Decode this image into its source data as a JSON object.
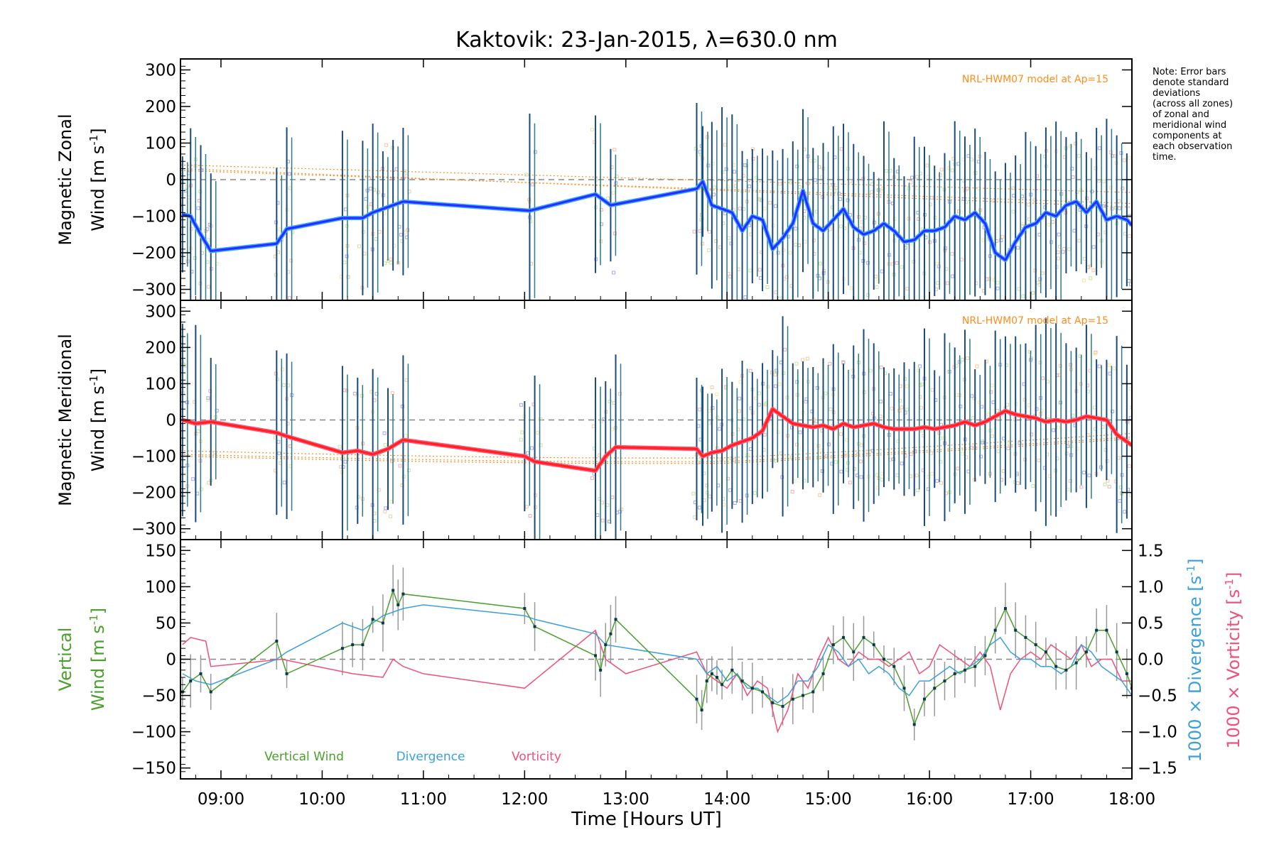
{
  "title": "Kaktovik: 23-Jan-2015, λ=630.0 nm",
  "note_lines": [
    "Note: Error bars",
    "denote standard",
    "deviations",
    "(across all zones)",
    "of zonal and",
    "meridional wind",
    "components at",
    "each observation",
    "time."
  ],
  "model_label": "NRL-HWM07 model at Ap=15",
  "colors": {
    "zonal": "#2b2bff",
    "zonal_light": "#33aaff",
    "meridional": "#ff2020",
    "meridional_light": "#ff5577",
    "vertical": "#4aa02c",
    "divergence": "#3aa0dd",
    "vorticity": "#f0507a",
    "model": "#ff8c1a",
    "errorbar": "#1a4a7a"
  },
  "chart_data": [
    {
      "type": "line",
      "panel": "zonal",
      "ylabel_1": "Magnetic Zonal",
      "ylabel_2": "Wind [m s",
      "ylabel_sup": "-1",
      "ylabel_end": "]",
      "xlim": [
        8.6,
        18.0
      ],
      "ylim": [
        -330,
        330
      ],
      "yticks": [
        -300,
        -200,
        -100,
        0,
        100,
        200,
        300
      ],
      "ytick_labels": [
        "−300",
        "−200",
        "−100",
        "0",
        "100",
        "200",
        "300"
      ],
      "series": [
        {
          "x": [
            8.62,
            8.7,
            8.8,
            8.9,
            9.55,
            9.65,
            10.2,
            10.4,
            10.5,
            10.6,
            10.7,
            10.8,
            12.05,
            12.7,
            12.85,
            13.7,
            13.76,
            13.85,
            13.95,
            14.05,
            14.15,
            14.25,
            14.35,
            14.45,
            14.55,
            14.65,
            14.75,
            14.85,
            14.95,
            15.05,
            15.15,
            15.25,
            15.35,
            15.45,
            15.55,
            15.65,
            15.75,
            15.85,
            15.95,
            16.05,
            16.15,
            16.25,
            16.35,
            16.45,
            16.55,
            16.65,
            16.75,
            16.85,
            16.95,
            17.05,
            17.15,
            17.25,
            17.35,
            17.45,
            17.55,
            17.65,
            17.75,
            17.85,
            17.95,
            18.0
          ],
          "y": [
            -95,
            -100,
            -150,
            -195,
            -175,
            -135,
            -105,
            -105,
            -90,
            -80,
            -70,
            -60,
            -85,
            -40,
            -70,
            -25,
            -5,
            -70,
            -80,
            -90,
            -140,
            -100,
            -110,
            -190,
            -160,
            -120,
            -30,
            -120,
            -140,
            -110,
            -80,
            -130,
            -150,
            -140,
            -120,
            -140,
            -170,
            -165,
            -140,
            -140,
            -130,
            -100,
            -110,
            -90,
            -120,
            -200,
            -220,
            -170,
            -130,
            -120,
            -90,
            -100,
            -70,
            -60,
            -90,
            -60,
            -110,
            -100,
            -110,
            -125
          ]
        }
      ]
    },
    {
      "type": "line",
      "panel": "meridional",
      "ylabel_1": "Magnetic Meridional",
      "ylabel_2": "Wind [m s",
      "ylabel_sup": "-1",
      "ylabel_end": "]",
      "xlim": [
        8.6,
        18.0
      ],
      "ylim": [
        -330,
        330
      ],
      "yticks": [
        -300,
        -200,
        -100,
        0,
        100,
        200,
        300
      ],
      "ytick_labels": [
        "−300",
        "−200",
        "−100",
        "0",
        "100",
        "200",
        "300"
      ],
      "series": [
        {
          "x": [
            8.62,
            8.75,
            8.9,
            9.55,
            9.65,
            10.2,
            10.35,
            10.5,
            10.65,
            10.8,
            12.0,
            12.1,
            12.7,
            12.8,
            12.9,
            13.7,
            13.76,
            13.85,
            13.95,
            14.05,
            14.15,
            14.25,
            14.35,
            14.45,
            14.55,
            14.65,
            14.75,
            14.85,
            14.95,
            15.05,
            15.15,
            15.25,
            15.35,
            15.45,
            15.55,
            15.65,
            15.75,
            15.85,
            15.95,
            16.05,
            16.15,
            16.25,
            16.35,
            16.45,
            16.55,
            16.65,
            16.75,
            16.85,
            16.95,
            17.05,
            17.15,
            17.25,
            17.35,
            17.45,
            17.55,
            17.65,
            17.75,
            17.85,
            17.95,
            18.0
          ],
          "y": [
            0,
            -10,
            -5,
            -35,
            -45,
            -90,
            -85,
            -95,
            -80,
            -55,
            -100,
            -115,
            -140,
            -100,
            -75,
            -80,
            -100,
            -90,
            -85,
            -70,
            -60,
            -50,
            -30,
            30,
            10,
            -10,
            -15,
            -20,
            -15,
            -25,
            -10,
            -20,
            -15,
            -10,
            -20,
            -25,
            -25,
            -25,
            -20,
            -25,
            -20,
            -15,
            -5,
            -15,
            -5,
            10,
            25,
            15,
            10,
            5,
            -5,
            0,
            -5,
            0,
            10,
            5,
            0,
            -40,
            -60,
            -70
          ]
        }
      ]
    },
    {
      "type": "line",
      "panel": "vertical",
      "ylabel_1": "Vertical",
      "ylabel_2": "Wind [m s",
      "ylabel_sup": "-1",
      "ylabel_end": "]",
      "ylabel_right_1": "1000 × Divergence [s",
      "ylabel_right_2": "1000 × Vorticity [s",
      "ylabel_right_sup": "-1",
      "ylabel_right_end": "]",
      "xlabel": "Time [Hours UT]",
      "xlim": [
        8.6,
        18.0
      ],
      "ylim": [
        -165,
        165
      ],
      "yticks": [
        -150,
        -100,
        -50,
        0,
        50,
        100,
        150
      ],
      "ytick_labels": [
        "−150",
        "−100",
        "−50",
        "0",
        "50",
        "100",
        "150"
      ],
      "y2lim": [
        -1.65,
        1.65
      ],
      "y2ticks": [
        -1.5,
        -1.0,
        -0.5,
        0.0,
        0.5,
        1.0,
        1.5
      ],
      "y2tick_labels": [
        "−1.5",
        "−1.0",
        "−0.5",
        "0.0",
        "0.5",
        "1.0",
        "1.5"
      ],
      "xticks": [
        9,
        10,
        11,
        12,
        13,
        14,
        15,
        16,
        17,
        18
      ],
      "xtick_labels": [
        "09:00",
        "10:00",
        "11:00",
        "12:00",
        "13:00",
        "14:00",
        "15:00",
        "16:00",
        "17:00",
        "18:00"
      ],
      "legend": [
        "Vertical Wind",
        "Divergence",
        "Vorticity"
      ],
      "series": [
        {
          "name": "Vertical Wind",
          "x": [
            8.62,
            8.7,
            8.8,
            8.9,
            9.55,
            9.65,
            10.2,
            10.3,
            10.4,
            10.5,
            10.6,
            10.7,
            10.75,
            10.8,
            12.0,
            12.1,
            12.7,
            12.75,
            12.8,
            12.85,
            12.9,
            13.7,
            13.75,
            13.8,
            13.85,
            13.9,
            13.95,
            14.05,
            14.15,
            14.25,
            14.35,
            14.45,
            14.55,
            14.65,
            14.75,
            14.85,
            14.95,
            15.05,
            15.15,
            15.25,
            15.35,
            15.45,
            15.55,
            15.65,
            15.75,
            15.85,
            15.95,
            16.05,
            16.15,
            16.25,
            16.35,
            16.45,
            16.55,
            16.65,
            16.75,
            16.85,
            16.95,
            17.05,
            17.15,
            17.25,
            17.35,
            17.45,
            17.55,
            17.65,
            17.75,
            17.85,
            17.95,
            18.0
          ],
          "y": [
            -45,
            -30,
            -20,
            -45,
            25,
            -20,
            15,
            20,
            20,
            55,
            50,
            95,
            75,
            90,
            70,
            45,
            5,
            -15,
            20,
            35,
            55,
            -55,
            -70,
            -30,
            -20,
            -25,
            -35,
            -15,
            -30,
            -40,
            -45,
            -60,
            -65,
            -55,
            -50,
            -45,
            -20,
            20,
            30,
            10,
            30,
            20,
            0,
            -10,
            -40,
            -90,
            -55,
            -40,
            -30,
            -20,
            -15,
            -10,
            5,
            40,
            70,
            40,
            30,
            20,
            10,
            -10,
            -15,
            -5,
            10,
            40,
            40,
            10,
            -20,
            -40
          ]
        },
        {
          "name": "Divergence",
          "x": [
            8.62,
            8.75,
            8.9,
            9.55,
            9.65,
            10.2,
            10.4,
            10.6,
            10.8,
            11.0,
            12.0,
            12.1,
            12.7,
            12.8,
            13.7,
            13.8,
            13.9,
            14.0,
            14.1,
            14.2,
            14.3,
            14.4,
            14.5,
            14.6,
            14.7,
            14.8,
            14.9,
            15.0,
            15.1,
            15.2,
            15.3,
            15.4,
            15.5,
            15.6,
            15.7,
            15.8,
            15.9,
            16.0,
            16.1,
            16.2,
            16.3,
            16.4,
            16.5,
            16.6,
            16.7,
            16.8,
            16.9,
            17.0,
            17.1,
            17.2,
            17.3,
            17.4,
            17.5,
            17.6,
            17.7,
            17.8,
            17.9,
            18.0
          ],
          "y": [
            -0.2,
            -0.3,
            -0.35,
            0.0,
            0.1,
            0.5,
            0.4,
            0.6,
            0.7,
            0.75,
            0.6,
            0.55,
            0.35,
            0.2,
            0.0,
            -0.2,
            -0.1,
            -0.3,
            -0.2,
            -0.4,
            -0.4,
            -0.5,
            -0.6,
            -0.5,
            -0.3,
            -0.3,
            -0.1,
            0.2,
            0.1,
            -0.1,
            0.0,
            -0.2,
            -0.1,
            -0.2,
            -0.4,
            -0.5,
            -0.3,
            -0.3,
            -0.2,
            -0.1,
            -0.2,
            -0.1,
            0.0,
            0.2,
            0.3,
            0.1,
            0.0,
            0.0,
            -0.1,
            -0.1,
            -0.2,
            -0.1,
            0.2,
            0.1,
            -0.1,
            -0.2,
            -0.3,
            -0.5
          ]
        },
        {
          "name": "Vorticity",
          "x": [
            8.62,
            8.7,
            8.85,
            8.9,
            9.6,
            10.3,
            10.6,
            10.7,
            10.8,
            11.0,
            12.0,
            12.7,
            12.8,
            13.0,
            13.7,
            13.8,
            13.9,
            14.0,
            14.1,
            14.2,
            14.3,
            14.4,
            14.5,
            14.6,
            14.7,
            14.8,
            14.9,
            15.0,
            15.1,
            15.2,
            15.3,
            15.4,
            15.5,
            15.6,
            15.7,
            15.8,
            15.9,
            16.0,
            16.1,
            16.2,
            16.3,
            16.4,
            16.5,
            16.6,
            16.7,
            16.8,
            16.9,
            17.0,
            17.1,
            17.2,
            17.3,
            17.4,
            17.5,
            17.6,
            17.7,
            17.8,
            17.9,
            18.0
          ],
          "y": [
            0.2,
            0.3,
            0.25,
            -0.1,
            0.0,
            -0.2,
            -0.25,
            0.0,
            -0.1,
            -0.2,
            -0.4,
            0.4,
            0.0,
            -0.2,
            0.1,
            -0.2,
            -0.3,
            -0.4,
            -0.2,
            -0.5,
            -0.3,
            -0.4,
            -1.0,
            -0.7,
            -0.2,
            -0.4,
            0.0,
            0.3,
            0.0,
            -0.1,
            0.1,
            0.0,
            0.0,
            -0.1,
            0.0,
            0.1,
            -0.2,
            -0.1,
            0.2,
            0.1,
            0.0,
            -0.1,
            0.1,
            -0.1,
            -0.7,
            -0.2,
            0.0,
            0.1,
            0.0,
            0.2,
            0.1,
            0.0,
            0.2,
            -0.1,
            0.0,
            0.0,
            -0.3,
            -0.3
          ]
        }
      ]
    }
  ]
}
